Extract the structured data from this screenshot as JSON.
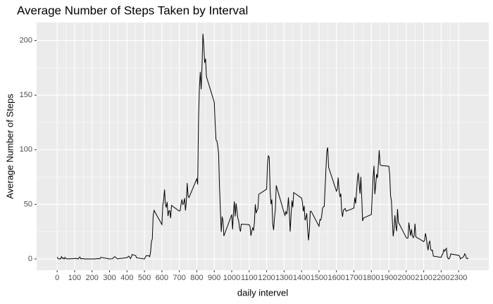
{
  "chart_data": {
    "type": "line",
    "title": "Average Number of Steps Taken by Interval",
    "x_label": "daily intervel",
    "y_label": "Average Number of Steps",
    "color": "#000000",
    "grid": true,
    "x": [
      0,
      5,
      10,
      15,
      20,
      25,
      30,
      35,
      40,
      45,
      50,
      55,
      100,
      105,
      110,
      115,
      120,
      125,
      130,
      135,
      140,
      145,
      150,
      155,
      200,
      215,
      230,
      245,
      250,
      300,
      315,
      330,
      345,
      400,
      410,
      420,
      430,
      440,
      450,
      455,
      500,
      510,
      525,
      530,
      535,
      540,
      545,
      550,
      555,
      600,
      605,
      610,
      615,
      620,
      625,
      630,
      635,
      640,
      645,
      650,
      655,
      700,
      705,
      710,
      715,
      720,
      725,
      730,
      735,
      740,
      745,
      750,
      755,
      800,
      805,
      810,
      815,
      820,
      825,
      830,
      835,
      840,
      845,
      850,
      855,
      900,
      905,
      910,
      915,
      920,
      925,
      930,
      935,
      940,
      945,
      950,
      955,
      1000,
      1005,
      1010,
      1015,
      1020,
      1025,
      1030,
      1035,
      1040,
      1045,
      1050,
      1055,
      1100,
      1105,
      1110,
      1115,
      1120,
      1125,
      1130,
      1135,
      1140,
      1145,
      1150,
      1155,
      1200,
      1205,
      1210,
      1215,
      1220,
      1225,
      1230,
      1235,
      1240,
      1245,
      1250,
      1255,
      1300,
      1305,
      1310,
      1315,
      1320,
      1325,
      1330,
      1335,
      1340,
      1345,
      1350,
      1355,
      1400,
      1405,
      1410,
      1415,
      1420,
      1425,
      1430,
      1435,
      1440,
      1445,
      1450,
      1455,
      1500,
      1505,
      1510,
      1515,
      1520,
      1525,
      1530,
      1535,
      1540,
      1545,
      1550,
      1555,
      1600,
      1605,
      1610,
      1615,
      1620,
      1625,
      1630,
      1635,
      1640,
      1645,
      1650,
      1655,
      1700,
      1705,
      1710,
      1715,
      1720,
      1725,
      1730,
      1735,
      1740,
      1745,
      1750,
      1755,
      1800,
      1805,
      1810,
      1815,
      1820,
      1825,
      1830,
      1835,
      1840,
      1845,
      1850,
      1855,
      1900,
      1905,
      1910,
      1915,
      1920,
      1925,
      1930,
      1935,
      1940,
      1945,
      1950,
      1955,
      2000,
      2005,
      2010,
      2015,
      2020,
      2025,
      2030,
      2035,
      2040,
      2045,
      2050,
      2055,
      2100,
      2105,
      2110,
      2115,
      2120,
      2125,
      2130,
      2135,
      2140,
      2145,
      2150,
      2155,
      2200,
      2205,
      2210,
      2215,
      2220,
      2225,
      2230,
      2235,
      2240,
      2245,
      2250,
      2255,
      2300,
      2305,
      2310,
      2315,
      2320,
      2325,
      2330,
      2335,
      2340,
      2345,
      2350,
      2355
    ],
    "values": [
      1.7,
      0.3,
      0.1,
      0.2,
      0.1,
      2.1,
      0.5,
      0.9,
      0,
      1.5,
      0.3,
      0.1,
      0.3,
      0.7,
      0.2,
      0.3,
      0,
      1.1,
      1.8,
      0.2,
      0.2,
      0.4,
      0.3,
      0,
      0,
      0,
      0.3,
      0.2,
      1.5,
      0,
      0.2,
      2.1,
      0.1,
      1.2,
      2.6,
      0.3,
      4.1,
      3.5,
      3.1,
      1.1,
      0,
      3,
      3,
      2.1,
      6.1,
      16,
      18.3,
      39.5,
      44.5,
      31.5,
      49.3,
      53.8,
      63.5,
      50,
      47.1,
      52.2,
      39.3,
      44,
      44.2,
      37.4,
      49,
      43.8,
      44.4,
      50.5,
      54.5,
      49.9,
      51,
      55.7,
      44.3,
      52.3,
      69.5,
      57.8,
      56.2,
      73.4,
      68.2,
      129.4,
      157.5,
      171.2,
      155.4,
      177.3,
      206.2,
      195.9,
      179.6,
      183.4,
      167,
      143.5,
      124,
      109.1,
      108.1,
      103.7,
      96,
      66.2,
      45.2,
      24.8,
      38.8,
      35,
      21.1,
      40.6,
      27,
      42.4,
      52.7,
      38.9,
      50.8,
      44.3,
      37.4,
      34.7,
      28.3,
      25.1,
      31.9,
      31.4,
      29.7,
      21.3,
      25.5,
      28.4,
      26.5,
      33.3,
      50,
      42,
      44.6,
      46,
      59.2,
      63.9,
      87.7,
      94.8,
      92.8,
      63.4,
      50.2,
      54.5,
      32.4,
      26.5,
      37.7,
      45.1,
      67.3,
      42.3,
      39.9,
      43.3,
      41,
      46.2,
      56.4,
      42.8,
      25.1,
      40,
      53.5,
      47.3,
      60.8,
      55.8,
      52,
      43.6,
      48.7,
      35.5,
      37.5,
      41.8,
      27.5,
      17.1,
      26.1,
      43.6,
      43.8,
      30,
      36.1,
      35.5,
      38.8,
      46,
      47.8,
      48.1,
      65.3,
      82.9,
      98.7,
      102.1,
      84,
      62.1,
      64.1,
      74.5,
      63.2,
      56.9,
      59.8,
      43.9,
      38.6,
      44.7,
      45.5,
      46.2,
      43.7,
      46.6,
      56.3,
      50.7,
      61.2,
      72.7,
      78.9,
      68.9,
      59.7,
      75.1,
      56.5,
      34.8,
      37.5,
      40.7,
      58,
      74.7,
      85.3,
      59.3,
      67.8,
      77.7,
      74.2,
      85.3,
      99.5,
      86.6,
      85.6,
      84.9,
      77.8,
      58,
      53.4,
      36.3,
      20.7,
      27.4,
      40,
      30.2,
      25.5,
      45.7,
      33.5,
      19.6,
      19,
      19.3,
      33.3,
      26.8,
      21.2,
      27.3,
      21.3,
      19.5,
      21.3,
      32.3,
      20.2,
      15.9,
      17.2,
      23.5,
      19.2,
      12.5,
      8,
      14.7,
      16.3,
      8.7,
      7.8,
      8.1,
      2.6,
      1.5,
      3.7,
      4.8,
      8.5,
      7.1,
      8.7,
      9.8,
      2.2,
      0.3,
      0.1,
      1.6,
      4.6,
      3.3,
      2.8,
      0,
      0.8,
      1,
      1.6,
      2.6,
      4.7,
      3.3,
      0.6,
      0.2,
      1.1
    ],
    "xlim": [
      -117.75,
      2472.75
    ],
    "xticks": [
      0,
      100,
      200,
      300,
      400,
      500,
      600,
      700,
      800,
      900,
      1000,
      1100,
      1200,
      1300,
      1400,
      1500,
      1600,
      1700,
      1800,
      1900,
      2000,
      2100,
      2200,
      2300
    ],
    "ylim": [
      -10.3,
      216.5
    ],
    "yticks": [
      0,
      50,
      100,
      150,
      200
    ]
  }
}
